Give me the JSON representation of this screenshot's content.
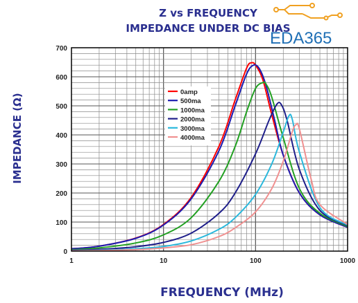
{
  "chart_data": {
    "type": "line",
    "title_line1": "Z vs FREQUENCY",
    "title_line2": "IMPEDANCE UNDER DC BIAS",
    "xlabel": "FREQUENCY (MHz)",
    "ylabel": "IMPEDANCE (Ω)",
    "x_scale": "log",
    "xlim": [
      1,
      1000
    ],
    "ylim": [
      0,
      700
    ],
    "x_ticks": [
      "1",
      "10",
      "100",
      "1000"
    ],
    "y_ticks": [
      "0",
      "100",
      "200",
      "300",
      "400",
      "500",
      "600",
      "700"
    ],
    "grid": true,
    "legend_position": "upper-left-inside",
    "series": [
      {
        "name": "0amp",
        "color": "#ff0000",
        "x": [
          1,
          2,
          5,
          10,
          20,
          40,
          60,
          80,
          90,
          100,
          120,
          150,
          200,
          300,
          500,
          1000
        ],
        "y": [
          8,
          17,
          45,
          92,
          185,
          360,
          520,
          630,
          648,
          640,
          590,
          470,
          330,
          200,
          125,
          82
        ]
      },
      {
        "name": "500ma",
        "color": "#1c1cb0",
        "x": [
          1,
          2,
          5,
          10,
          20,
          40,
          60,
          80,
          95,
          110,
          130,
          160,
          200,
          300,
          500,
          1000
        ],
        "y": [
          8,
          17,
          44,
          90,
          180,
          345,
          500,
          610,
          640,
          628,
          570,
          455,
          330,
          200,
          125,
          82
        ]
      },
      {
        "name": "1000ma",
        "color": "#22a022",
        "x": [
          1,
          2,
          5,
          10,
          20,
          40,
          60,
          80,
          100,
          120,
          130,
          150,
          200,
          300,
          500,
          1000
        ],
        "y": [
          5,
          11,
          28,
          56,
          115,
          240,
          360,
          480,
          560,
          580,
          575,
          530,
          390,
          215,
          130,
          85
        ]
      },
      {
        "name": "2000ma",
        "color": "#1e1e8a",
        "x": [
          1,
          2,
          5,
          10,
          20,
          40,
          60,
          100,
          140,
          170,
          190,
          220,
          300,
          500,
          1000
        ],
        "y": [
          3,
          6,
          15,
          30,
          62,
          130,
          200,
          335,
          450,
          505,
          505,
          450,
          280,
          140,
          88
        ]
      },
      {
        "name": "3000ma",
        "color": "#2ab8dc",
        "x": [
          1,
          2,
          5,
          10,
          20,
          40,
          60,
          100,
          150,
          200,
          230,
          250,
          300,
          500,
          1000
        ],
        "y": [
          1.5,
          3,
          8,
          16,
          35,
          75,
          115,
          195,
          300,
          410,
          465,
          455,
          340,
          150,
          90
        ]
      },
      {
        "name": "4000ma",
        "color": "#f09090",
        "x": [
          1,
          2,
          5,
          10,
          20,
          40,
          60,
          100,
          150,
          200,
          250,
          275,
          300,
          400,
          500,
          1000
        ],
        "y": [
          1,
          2,
          5,
          11,
          22,
          50,
          80,
          135,
          215,
          310,
          410,
          435,
          420,
          250,
          160,
          92
        ]
      }
    ]
  },
  "logo": {
    "text": "EDA365",
    "color": "#1f6fb5"
  }
}
